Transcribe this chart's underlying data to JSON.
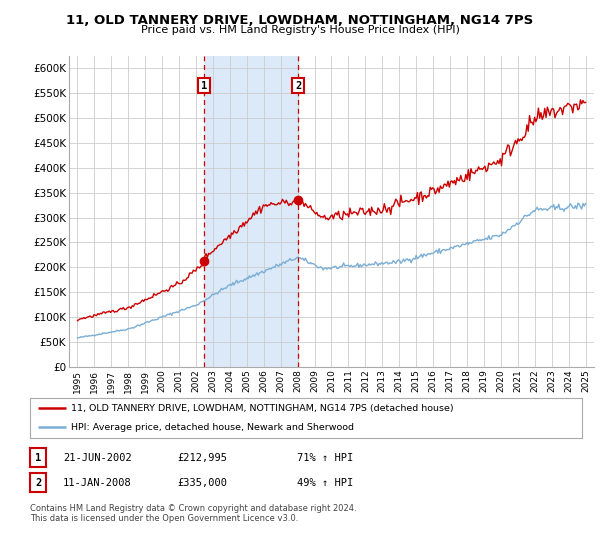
{
  "title": "11, OLD TANNERY DRIVE, LOWDHAM, NOTTINGHAM, NG14 7PS",
  "subtitle": "Price paid vs. HM Land Registry's House Price Index (HPI)",
  "sale1_date": "21-JUN-2002",
  "sale1_price": 212995,
  "sale1_hpi": "71% ↑ HPI",
  "sale2_date": "11-JAN-2008",
  "sale2_price": 335000,
  "sale2_hpi": "49% ↑ HPI",
  "legend_line1": "11, OLD TANNERY DRIVE, LOWDHAM, NOTTINGHAM, NG14 7PS (detached house)",
  "legend_line2": "HPI: Average price, detached house, Newark and Sherwood",
  "footer": "Contains HM Land Registry data © Crown copyright and database right 2024.\nThis data is licensed under the Open Government Licence v3.0.",
  "line_color_red": "#cc0000",
  "line_color_blue": "#7aaed6",
  "shaded_region_color": "#dce9f8",
  "background_color": "#ffffff",
  "grid_color": "#cccccc",
  "ylim": [
    0,
    625000
  ],
  "yticks": [
    0,
    50000,
    100000,
    150000,
    200000,
    250000,
    300000,
    350000,
    400000,
    450000,
    500000,
    550000,
    600000
  ],
  "sale1_x": 2002.47,
  "sale2_x": 2008.03
}
